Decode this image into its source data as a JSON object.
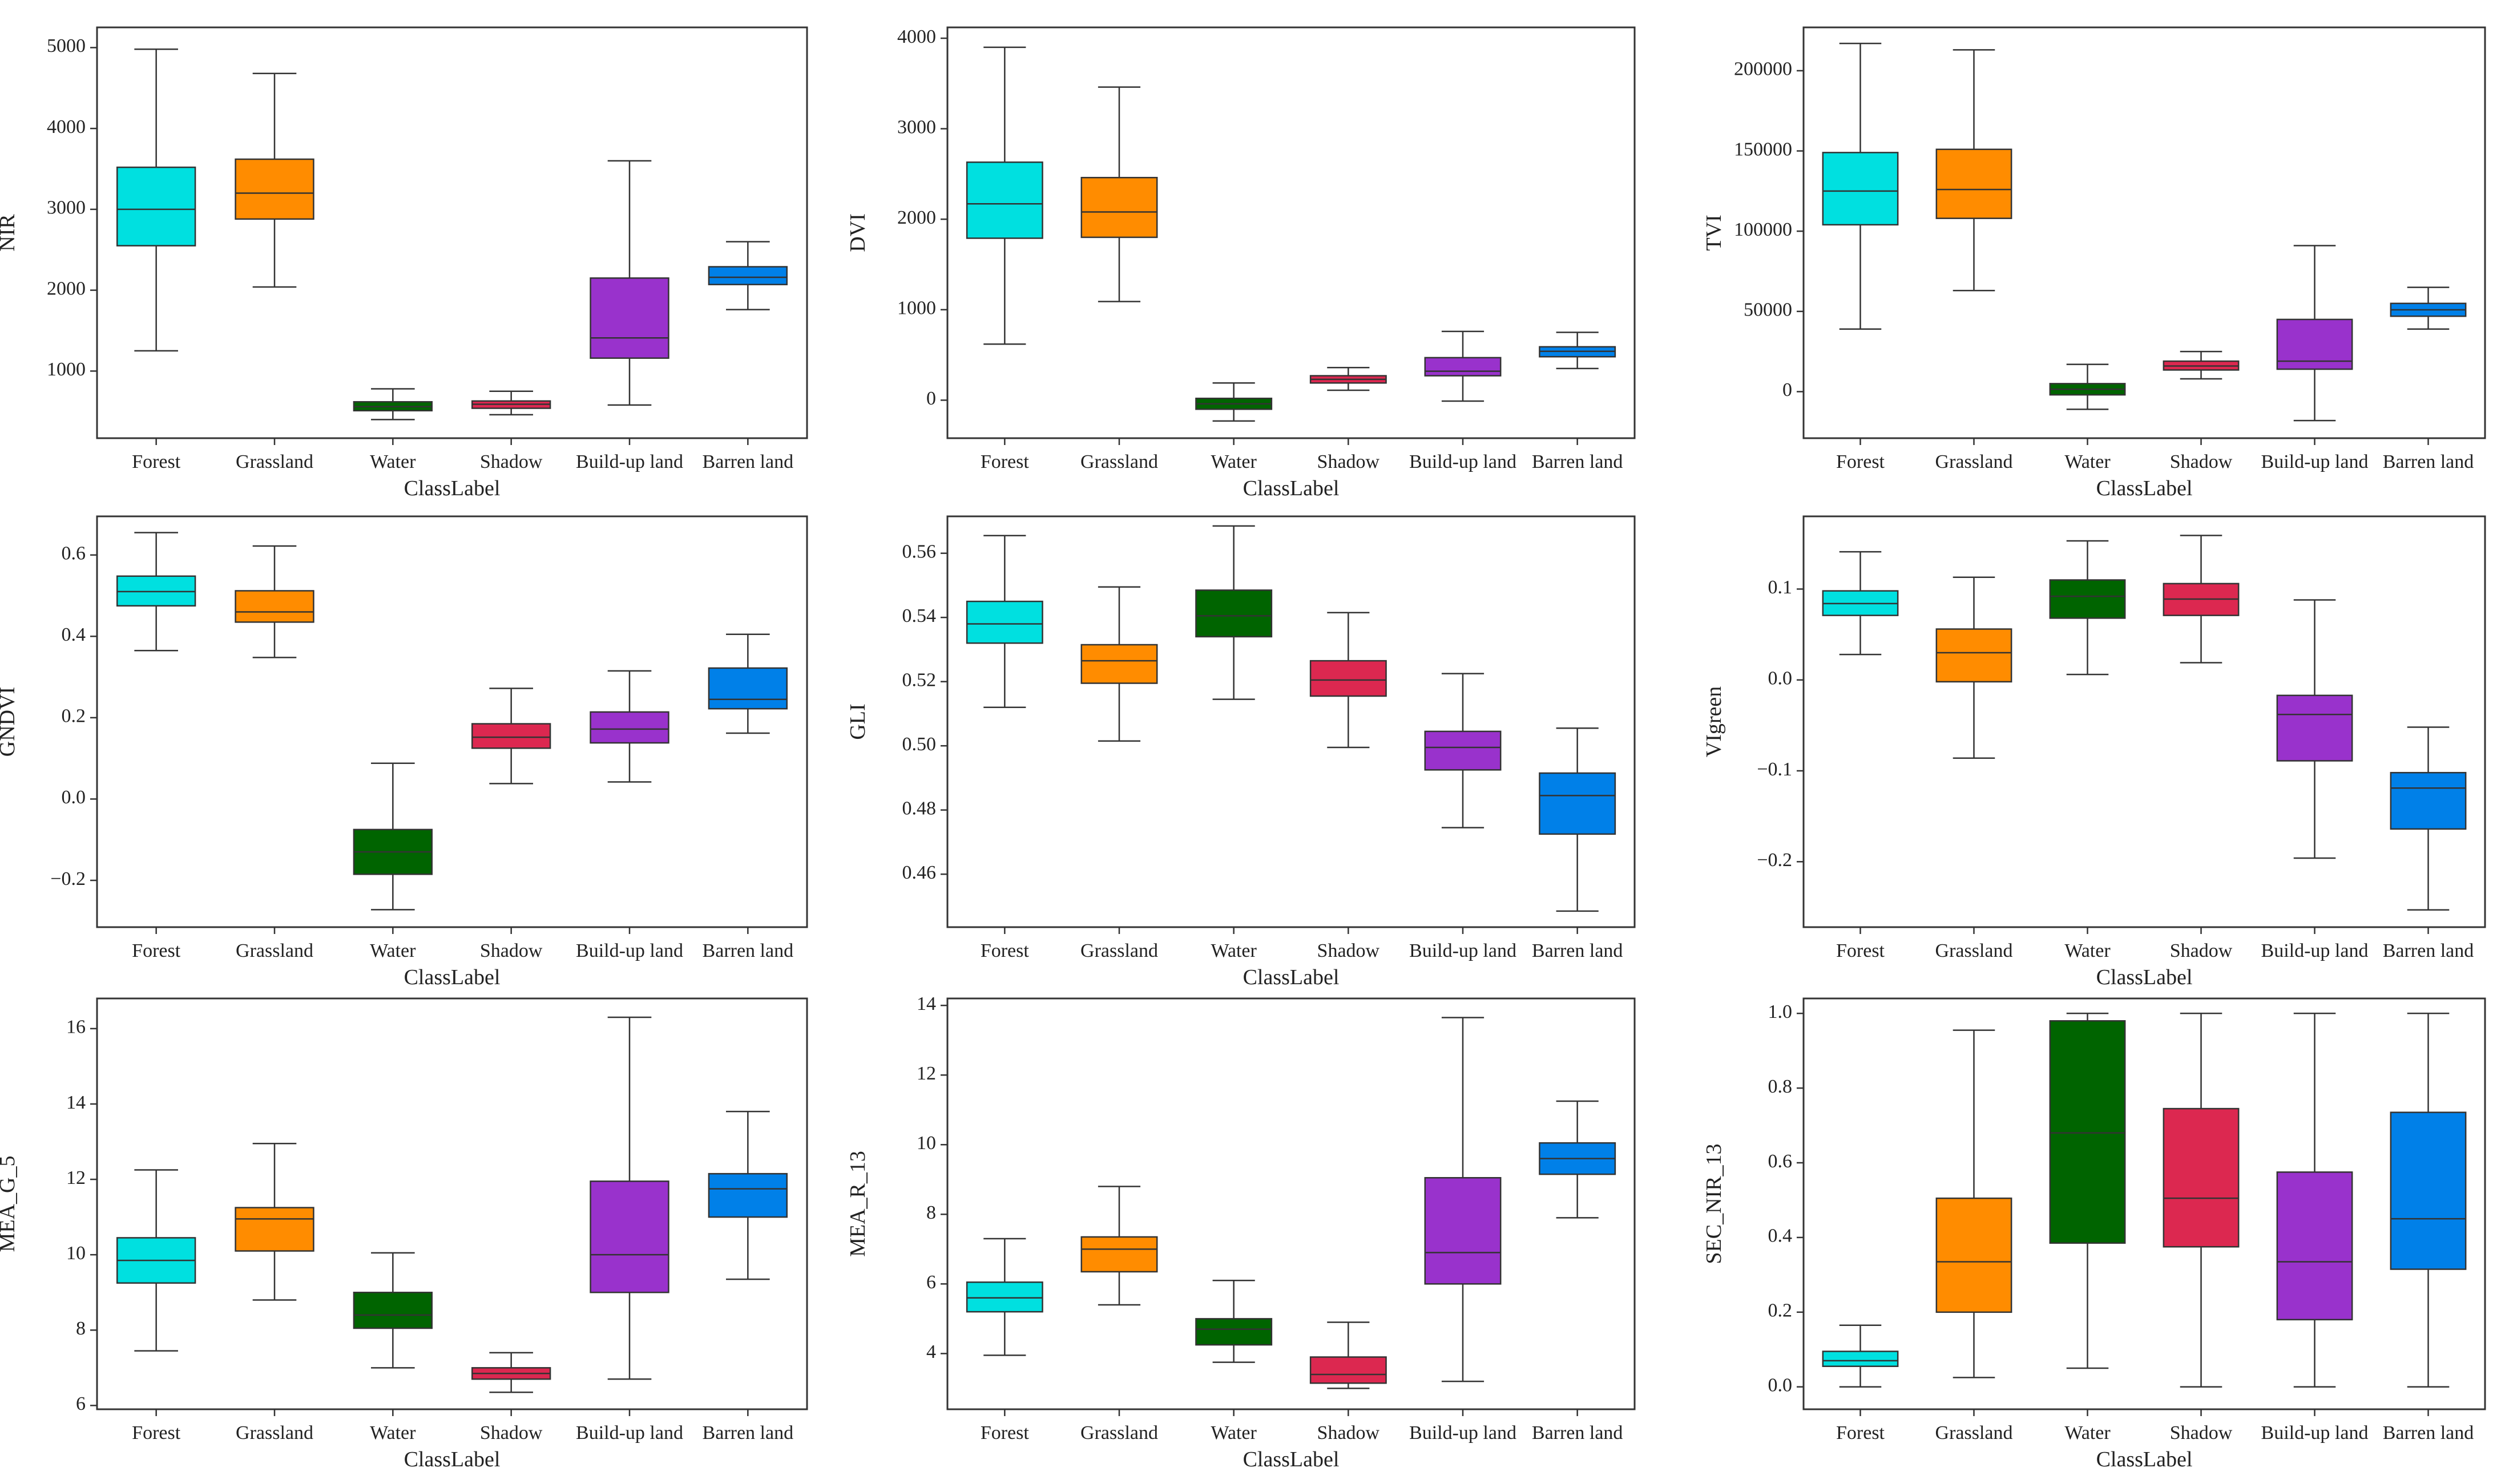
{
  "palette": {
    "Forest": "#00E0E0",
    "Grassland": "#FF8C00",
    "Water": "#006400",
    "Shadow": "#DC2850",
    "Build-up land": "#9932CC",
    "Barren land": "#0080E8"
  },
  "chart_data": [
    {
      "type": "box",
      "ylabel": "NIR",
      "xlabel": "ClassLabel",
      "categories": [
        "Forest",
        "Grassland",
        "Water",
        "Shadow",
        "Build-up land",
        "Barren land"
      ],
      "ylim": [
        170,
        5250
      ],
      "yticks": [
        1000,
        2000,
        3000,
        4000,
        5000
      ],
      "yticklabels": [
        "1000",
        "2000",
        "3000",
        "4000",
        "5000"
      ],
      "boxes": [
        {
          "category": "Forest",
          "min": 1250,
          "q1": 2550,
          "median": 3000,
          "q3": 3520,
          "max": 4980
        },
        {
          "category": "Grassland",
          "min": 2040,
          "q1": 2880,
          "median": 3200,
          "q3": 3620,
          "max": 4680
        },
        {
          "category": "Water",
          "min": 400,
          "q1": 510,
          "median": 560,
          "q3": 620,
          "max": 780
        },
        {
          "category": "Shadow",
          "min": 460,
          "q1": 540,
          "median": 590,
          "q3": 630,
          "max": 750
        },
        {
          "category": "Build-up land",
          "min": 580,
          "q1": 1160,
          "median": 1410,
          "q3": 2150,
          "max": 3600
        },
        {
          "category": "Barren land",
          "min": 1760,
          "q1": 2070,
          "median": 2160,
          "q3": 2290,
          "max": 2600
        }
      ]
    },
    {
      "type": "box",
      "ylabel": "DVI",
      "xlabel": "ClassLabel",
      "categories": [
        "Forest",
        "Grassland",
        "Water",
        "Shadow",
        "Build-up land",
        "Barren land"
      ],
      "ylim": [
        -420,
        4120
      ],
      "yticks": [
        0,
        1000,
        2000,
        3000,
        4000
      ],
      "yticklabels": [
        "0",
        "1000",
        "2000",
        "3000",
        "4000"
      ],
      "boxes": [
        {
          "category": "Forest",
          "min": 620,
          "q1": 1790,
          "median": 2170,
          "q3": 2630,
          "max": 3900
        },
        {
          "category": "Grassland",
          "min": 1090,
          "q1": 1800,
          "median": 2080,
          "q3": 2460,
          "max": 3460
        },
        {
          "category": "Water",
          "min": -230,
          "q1": -100,
          "median": -40,
          "q3": 20,
          "max": 190
        },
        {
          "category": "Shadow",
          "min": 110,
          "q1": 190,
          "median": 230,
          "q3": 270,
          "max": 360
        },
        {
          "category": "Build-up land",
          "min": -10,
          "q1": 270,
          "median": 320,
          "q3": 470,
          "max": 760
        },
        {
          "category": "Barren land",
          "min": 350,
          "q1": 480,
          "median": 540,
          "q3": 590,
          "max": 750
        }
      ]
    },
    {
      "type": "box",
      "ylabel": "TVI",
      "xlabel": "ClassLabel",
      "categories": [
        "Forest",
        "Grassland",
        "Water",
        "Shadow",
        "Build-up land",
        "Barren land"
      ],
      "ylim": [
        -29000,
        227000
      ],
      "yticks": [
        0,
        50000,
        100000,
        150000,
        200000
      ],
      "yticklabels": [
        "0",
        "50000",
        "100000",
        "150000",
        "200000"
      ],
      "boxes": [
        {
          "category": "Forest",
          "min": 39000,
          "q1": 104000,
          "median": 125000,
          "q3": 149000,
          "max": 217000
        },
        {
          "category": "Grassland",
          "min": 63000,
          "q1": 108000,
          "median": 126000,
          "q3": 151000,
          "max": 213000
        },
        {
          "category": "Water",
          "min": -11000,
          "q1": -2000,
          "median": 1500,
          "q3": 5000,
          "max": 17000
        },
        {
          "category": "Shadow",
          "min": 8000,
          "q1": 13500,
          "median": 16000,
          "q3": 19000,
          "max": 25000
        },
        {
          "category": "Build-up land",
          "min": -18000,
          "q1": 14000,
          "median": 19000,
          "q3": 45000,
          "max": 91000
        },
        {
          "category": "Barren land",
          "min": 39000,
          "q1": 47000,
          "median": 51000,
          "q3": 55000,
          "max": 65000
        }
      ]
    },
    {
      "type": "box",
      "ylabel": "GNDVI",
      "xlabel": "ClassLabel",
      "categories": [
        "Forest",
        "Grassland",
        "Water",
        "Shadow",
        "Build-up land",
        "Barren land"
      ],
      "ylim": [
        -0.315,
        0.695
      ],
      "yticks": [
        -0.2,
        0.0,
        0.2,
        0.4,
        0.6
      ],
      "yticklabels": [
        "−0.2",
        "0.0",
        "0.2",
        "0.4",
        "0.6"
      ],
      "boxes": [
        {
          "category": "Forest",
          "min": 0.365,
          "q1": 0.475,
          "median": 0.51,
          "q3": 0.548,
          "max": 0.655
        },
        {
          "category": "Grassland",
          "min": 0.348,
          "q1": 0.435,
          "median": 0.46,
          "q3": 0.512,
          "max": 0.622
        },
        {
          "category": "Water",
          "min": -0.272,
          "q1": -0.185,
          "median": -0.13,
          "q3": -0.075,
          "max": 0.088
        },
        {
          "category": "Shadow",
          "min": 0.038,
          "q1": 0.125,
          "median": 0.152,
          "q3": 0.185,
          "max": 0.272
        },
        {
          "category": "Build-up land",
          "min": 0.042,
          "q1": 0.138,
          "median": 0.172,
          "q3": 0.214,
          "max": 0.315
        },
        {
          "category": "Barren land",
          "min": 0.162,
          "q1": 0.222,
          "median": 0.245,
          "q3": 0.322,
          "max": 0.405
        }
      ]
    },
    {
      "type": "box",
      "ylabel": "GLI",
      "xlabel": "ClassLabel",
      "categories": [
        "Forest",
        "Grassland",
        "Water",
        "Shadow",
        "Build-up land",
        "Barren land"
      ],
      "ylim": [
        0.4435,
        0.5715
      ],
      "yticks": [
        0.46,
        0.48,
        0.5,
        0.52,
        0.54,
        0.56
      ],
      "yticklabels": [
        "0.46",
        "0.48",
        "0.50",
        "0.52",
        "0.54",
        "0.56"
      ],
      "boxes": [
        {
          "category": "Forest",
          "min": 0.512,
          "q1": 0.532,
          "median": 0.538,
          "q3": 0.545,
          "max": 0.5655
        },
        {
          "category": "Grassland",
          "min": 0.5015,
          "q1": 0.5195,
          "median": 0.5265,
          "q3": 0.5315,
          "max": 0.5495
        },
        {
          "category": "Water",
          "min": 0.5145,
          "q1": 0.534,
          "median": 0.5405,
          "q3": 0.5485,
          "max": 0.5685
        },
        {
          "category": "Shadow",
          "min": 0.4995,
          "q1": 0.5155,
          "median": 0.5205,
          "q3": 0.5265,
          "max": 0.5415
        },
        {
          "category": "Build-up land",
          "min": 0.4745,
          "q1": 0.4925,
          "median": 0.4995,
          "q3": 0.5045,
          "max": 0.5225
        },
        {
          "category": "Barren land",
          "min": 0.4485,
          "q1": 0.4725,
          "median": 0.4845,
          "q3": 0.4915,
          "max": 0.5055
        }
      ]
    },
    {
      "type": "box",
      "ylabel": "VIgreen",
      "xlabel": "ClassLabel",
      "categories": [
        "Forest",
        "Grassland",
        "Water",
        "Shadow",
        "Build-up land",
        "Barren land"
      ],
      "ylim": [
        -0.272,
        0.18
      ],
      "yticks": [
        -0.2,
        -0.1,
        0.0,
        0.1
      ],
      "yticklabels": [
        "−0.2",
        "−0.1",
        "0.0",
        "0.1"
      ],
      "boxes": [
        {
          "category": "Forest",
          "min": 0.028,
          "q1": 0.071,
          "median": 0.084,
          "q3": 0.098,
          "max": 0.141
        },
        {
          "category": "Grassland",
          "min": -0.086,
          "q1": -0.002,
          "median": 0.03,
          "q3": 0.056,
          "max": 0.113
        },
        {
          "category": "Water",
          "min": 0.006,
          "q1": 0.068,
          "median": 0.092,
          "q3": 0.11,
          "max": 0.153
        },
        {
          "category": "Shadow",
          "min": 0.019,
          "q1": 0.071,
          "median": 0.089,
          "q3": 0.106,
          "max": 0.159
        },
        {
          "category": "Build-up land",
          "min": -0.196,
          "q1": -0.089,
          "median": -0.038,
          "q3": -0.017,
          "max": 0.088
        },
        {
          "category": "Barren land",
          "min": -0.253,
          "q1": -0.164,
          "median": -0.119,
          "q3": -0.102,
          "max": -0.052
        }
      ]
    },
    {
      "type": "box",
      "ylabel": "MEA_G_5",
      "xlabel": "ClassLabel",
      "categories": [
        "Forest",
        "Grassland",
        "Water",
        "Shadow",
        "Build-up land",
        "Barren land"
      ],
      "ylim": [
        5.9,
        16.8
      ],
      "yticks": [
        6,
        8,
        10,
        12,
        14,
        16
      ],
      "yticklabels": [
        "6",
        "8",
        "10",
        "12",
        "14",
        "16"
      ],
      "boxes": [
        {
          "category": "Forest",
          "min": 7.45,
          "q1": 9.25,
          "median": 9.85,
          "q3": 10.45,
          "max": 12.25
        },
        {
          "category": "Grassland",
          "min": 8.8,
          "q1": 10.1,
          "median": 10.95,
          "q3": 11.25,
          "max": 12.95
        },
        {
          "category": "Water",
          "min": 7.0,
          "q1": 8.05,
          "median": 8.4,
          "q3": 9.0,
          "max": 10.05
        },
        {
          "category": "Shadow",
          "min": 6.35,
          "q1": 6.7,
          "median": 6.85,
          "q3": 7.0,
          "max": 7.4
        },
        {
          "category": "Build-up land",
          "min": 6.7,
          "q1": 9.0,
          "median": 10.0,
          "q3": 11.95,
          "max": 16.3
        },
        {
          "category": "Barren land",
          "min": 9.35,
          "q1": 11.0,
          "median": 11.75,
          "q3": 12.15,
          "max": 13.8
        }
      ]
    },
    {
      "type": "box",
      "ylabel": "MEA_R_13",
      "xlabel": "ClassLabel",
      "categories": [
        "Forest",
        "Grassland",
        "Water",
        "Shadow",
        "Build-up land",
        "Barren land"
      ],
      "ylim": [
        2.4,
        14.2
      ],
      "yticks": [
        4,
        6,
        8,
        10,
        12,
        14
      ],
      "yticklabels": [
        "4",
        "6",
        "8",
        "10",
        "12",
        "14"
      ],
      "boxes": [
        {
          "category": "Forest",
          "min": 3.95,
          "q1": 5.2,
          "median": 5.6,
          "q3": 6.05,
          "max": 7.3
        },
        {
          "category": "Grassland",
          "min": 5.4,
          "q1": 6.35,
          "median": 7.0,
          "q3": 7.35,
          "max": 8.8
        },
        {
          "category": "Water",
          "min": 3.75,
          "q1": 4.25,
          "median": 4.7,
          "q3": 5.0,
          "max": 6.1
        },
        {
          "category": "Shadow",
          "min": 3.0,
          "q1": 3.15,
          "median": 3.4,
          "q3": 3.9,
          "max": 4.9
        },
        {
          "category": "Build-up land",
          "min": 3.2,
          "q1": 6.0,
          "median": 6.9,
          "q3": 9.05,
          "max": 13.65
        },
        {
          "category": "Barren land",
          "min": 7.9,
          "q1": 9.15,
          "median": 9.6,
          "q3": 10.05,
          "max": 11.25
        }
      ]
    },
    {
      "type": "box",
      "ylabel": "SEC_NIR_13",
      "xlabel": "ClassLabel",
      "categories": [
        "Forest",
        "Grassland",
        "Water",
        "Shadow",
        "Build-up land",
        "Barren land"
      ],
      "ylim": [
        -0.06,
        1.04
      ],
      "yticks": [
        0.0,
        0.2,
        0.4,
        0.6,
        0.8,
        1.0
      ],
      "yticklabels": [
        "0.0",
        "0.2",
        "0.4",
        "0.6",
        "0.8",
        "1.0"
      ],
      "boxes": [
        {
          "category": "Forest",
          "min": 0.0,
          "q1": 0.055,
          "median": 0.07,
          "q3": 0.095,
          "max": 0.165
        },
        {
          "category": "Grassland",
          "min": 0.025,
          "q1": 0.2,
          "median": 0.335,
          "q3": 0.505,
          "max": 0.955
        },
        {
          "category": "Water",
          "min": 0.05,
          "q1": 0.385,
          "median": 0.68,
          "q3": 0.98,
          "max": 1.0
        },
        {
          "category": "Shadow",
          "min": 0.0,
          "q1": 0.375,
          "median": 0.505,
          "q3": 0.745,
          "max": 1.0
        },
        {
          "category": "Build-up land",
          "min": 0.0,
          "q1": 0.18,
          "median": 0.335,
          "q3": 0.575,
          "max": 1.0
        },
        {
          "category": "Barren land",
          "min": 0.0,
          "q1": 0.315,
          "median": 0.45,
          "q3": 0.735,
          "max": 1.0
        }
      ]
    }
  ]
}
